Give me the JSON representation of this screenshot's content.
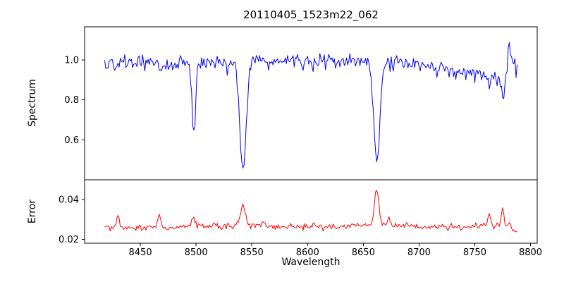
{
  "chart_data": {
    "type": "line",
    "title": "20110405_1523m22_062",
    "xlabel": "Wavelength",
    "xlim": [
      8400,
      8806
    ],
    "x_ticks": [
      8450,
      8500,
      8550,
      8600,
      8650,
      8700,
      8750,
      8800
    ],
    "x_tick_labels": [
      "8450",
      "8500",
      "8550",
      "8600",
      "8650",
      "8700",
      "8750",
      "8800"
    ],
    "x_data_range": [
      8418,
      8788
    ],
    "sample_step": 1.0,
    "noise_seed": 20110405,
    "grid": false,
    "legend": false,
    "background": "#ffffff",
    "axis_color": "#000000",
    "panels": [
      {
        "name": "spectrum",
        "ylabel": "Spectrum",
        "ylim": [
          0.4,
          1.165
        ],
        "y_ticks": [
          0.6,
          0.8,
          1.0
        ],
        "y_tick_labels": [
          "0.6",
          "0.8",
          "1.0"
        ],
        "color": "#0000ee",
        "noise_sigma": 0.02,
        "base": [
          [
            8418,
            0.975
          ],
          [
            8428,
            0.99
          ],
          [
            8438,
            0.98
          ],
          [
            8450,
            0.99
          ],
          [
            8462,
            0.985
          ],
          [
            8475,
            0.975
          ],
          [
            8488,
            0.985
          ],
          [
            8500,
            0.982
          ],
          [
            8512,
            0.985
          ],
          [
            8525,
            0.988
          ],
          [
            8540,
            0.99
          ],
          [
            8555,
            0.995
          ],
          [
            8570,
            1.0
          ],
          [
            8585,
            0.995
          ],
          [
            8600,
            0.988
          ],
          [
            8615,
            0.99
          ],
          [
            8630,
            0.995
          ],
          [
            8645,
            0.995
          ],
          [
            8660,
            0.99
          ],
          [
            8675,
            0.988
          ],
          [
            8690,
            0.982
          ],
          [
            8705,
            0.972
          ],
          [
            8720,
            0.958
          ],
          [
            8735,
            0.945
          ],
          [
            8748,
            0.938
          ],
          [
            8758,
            0.922
          ],
          [
            8766,
            0.905
          ],
          [
            8772,
            0.896
          ],
          [
            8777,
            0.9
          ],
          [
            8779,
            1.0
          ],
          [
            8780.5,
            1.1
          ],
          [
            8782,
            1.03
          ],
          [
            8784,
            0.995
          ],
          [
            8788,
            0.985
          ]
        ],
        "features": [
          {
            "center": 8468.0,
            "amp": -0.04,
            "sigma": 1.5
          },
          {
            "center": 8498.0,
            "amp": -0.35,
            "sigma": 1.7
          },
          {
            "center": 8542.1,
            "amp": -0.545,
            "sigma": 2.9
          },
          {
            "center": 8662.1,
            "amp": -0.5,
            "sigma": 2.7
          },
          {
            "center": 8775.5,
            "amp": -0.085,
            "sigma": 1.3
          }
        ]
      },
      {
        "name": "error",
        "ylabel": "Error",
        "ylim": [
          0.018,
          0.05
        ],
        "y_ticks": [
          0.02,
          0.04
        ],
        "y_tick_labels": [
          "0.02",
          "0.04"
        ],
        "color": "#ff0000",
        "noise_sigma": 0.00075,
        "base": [
          [
            8418,
            0.0262
          ],
          [
            8440,
            0.0258
          ],
          [
            8460,
            0.026
          ],
          [
            8480,
            0.0262
          ],
          [
            8500,
            0.0266
          ],
          [
            8520,
            0.0262
          ],
          [
            8540,
            0.027
          ],
          [
            8560,
            0.0266
          ],
          [
            8580,
            0.0262
          ],
          [
            8600,
            0.0265
          ],
          [
            8620,
            0.0262
          ],
          [
            8640,
            0.0267
          ],
          [
            8655,
            0.0274
          ],
          [
            8665,
            0.0276
          ],
          [
            8680,
            0.0268
          ],
          [
            8700,
            0.0264
          ],
          [
            8720,
            0.0262
          ],
          [
            8740,
            0.026
          ],
          [
            8755,
            0.0263
          ],
          [
            8765,
            0.0267
          ],
          [
            8772,
            0.0268
          ],
          [
            8778,
            0.0264
          ],
          [
            8782,
            0.0252
          ],
          [
            8788,
            0.0238
          ]
        ],
        "features": [
          {
            "center": 8430,
            "amp": 0.0052,
            "sigma": 1.3
          },
          {
            "center": 8467,
            "amp": 0.0058,
            "sigma": 1.3
          },
          {
            "center": 8497.5,
            "amp": 0.0045,
            "sigma": 1.6
          },
          {
            "center": 8516,
            "amp": 0.0022,
            "sigma": 1.2
          },
          {
            "center": 8542,
            "amp": 0.01,
            "sigma": 2.2
          },
          {
            "center": 8561,
            "amp": 0.0024,
            "sigma": 1.4
          },
          {
            "center": 8586,
            "amp": 0.0014,
            "sigma": 1.3
          },
          {
            "center": 8606,
            "amp": 0.0013,
            "sigma": 1.3
          },
          {
            "center": 8640,
            "amp": 0.0015,
            "sigma": 1.2
          },
          {
            "center": 8662,
            "amp": 0.0173,
            "sigma": 1.9
          },
          {
            "center": 8673,
            "amp": 0.0028,
            "sigma": 1.3
          },
          {
            "center": 8763,
            "amp": 0.0058,
            "sigma": 1.3
          },
          {
            "center": 8775,
            "amp": 0.0092,
            "sigma": 1.1
          },
          {
            "center": 8781,
            "amp": 0.0035,
            "sigma": 0.9
          }
        ]
      }
    ]
  }
}
